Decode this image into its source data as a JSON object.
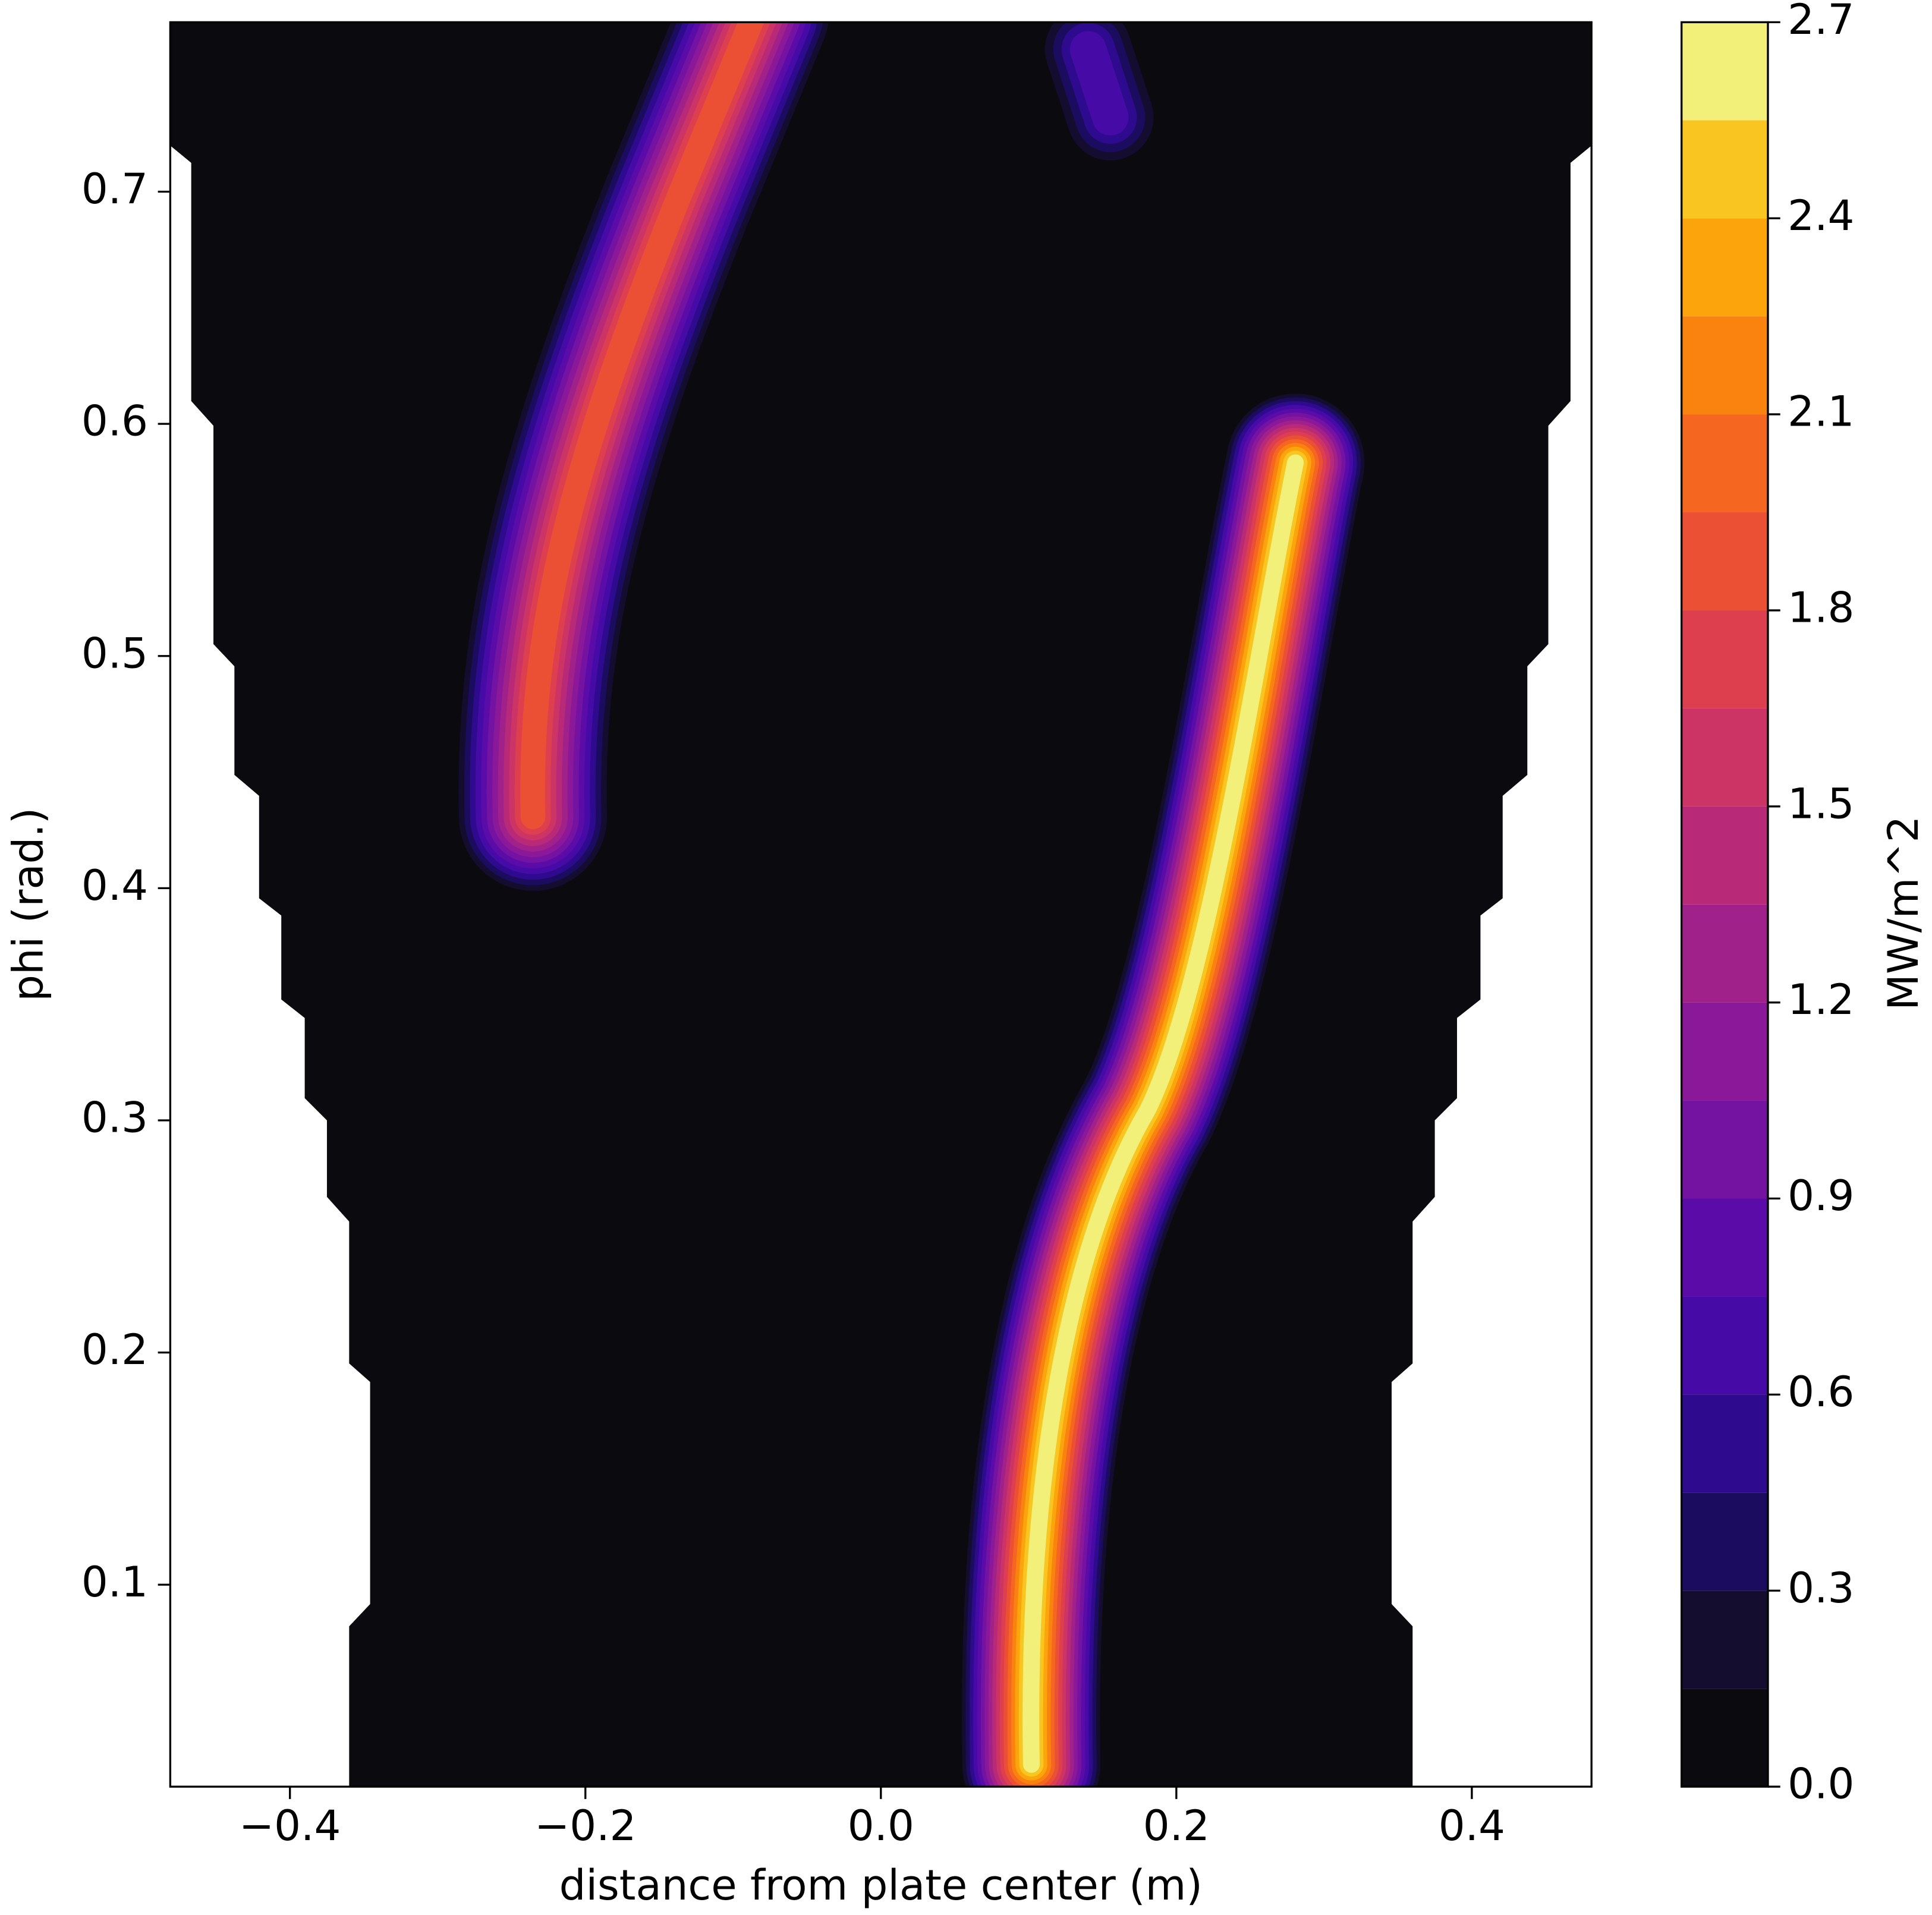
{
  "chart_data": {
    "type": "contourf",
    "xlabel": "distance from plate center (m)",
    "ylabel": "phi (rad.)",
    "xlim": [
      -0.481,
      0.481
    ],
    "ylim": [
      0.013,
      0.773
    ],
    "xticks": [
      {
        "value": -0.4,
        "label": "−0.4"
      },
      {
        "value": -0.2,
        "label": "−0.2"
      },
      {
        "value": 0,
        "label": "0.0"
      },
      0.2,
      0.4
    ],
    "yticks": [
      0.1,
      0.2,
      0.3,
      0.4,
      0.5,
      0.6,
      0.7
    ],
    "colorbar": {
      "label": "MW/m^2",
      "lim": [
        0,
        2.7
      ],
      "ticks": [
        {
          "value": 0,
          "label": "0.0"
        },
        0.3,
        0.6,
        0.9,
        1.2,
        1.5,
        1.8,
        2.1,
        2.4,
        2.7
      ],
      "levels": [
        0,
        0.15,
        0.3,
        0.45,
        0.6,
        0.75,
        0.9,
        1.05,
        1.2,
        1.35,
        1.5,
        1.65,
        1.8,
        1.95,
        2.1,
        2.25,
        2.4,
        2.55,
        2.7
      ],
      "colors": [
        "#0b0b0f",
        "#140d2f",
        "#1c0c60",
        "#2e0b8e",
        "#460aa6",
        "#5b0ca8",
        "#7412a2",
        "#8a1898",
        "#a1218a",
        "#b82a78",
        "#cc3465",
        "#de3f4e",
        "#eb5035",
        "#f56620",
        "#fa8310",
        "#fca40c",
        "#f9c520",
        "#f2f078"
      ]
    }
  }
}
